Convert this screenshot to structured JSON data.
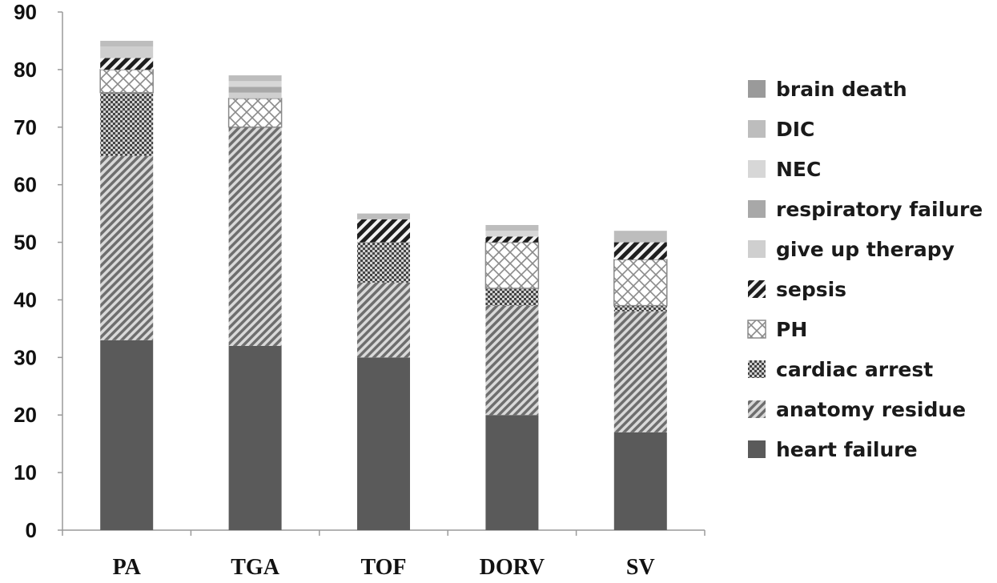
{
  "chart_data": {
    "type": "bar",
    "stacked": true,
    "categories": [
      "PA",
      "TGA",
      "TOF",
      "DORV",
      "SV"
    ],
    "ylim": [
      0,
      90
    ],
    "yticks": [
      0,
      10,
      20,
      30,
      40,
      50,
      60,
      70,
      80,
      90
    ],
    "grid": false,
    "legend_position": "right",
    "title": "",
    "xlabel": "",
    "ylabel": "",
    "series": [
      {
        "name": "heart failure",
        "values": [
          33,
          32,
          30,
          20,
          17
        ],
        "pattern": "solid",
        "color": "#5a5a5a"
      },
      {
        "name": "anatomy residue",
        "values": [
          32,
          38,
          13,
          19,
          21
        ],
        "pattern": "diagonal",
        "color": "#6e6e6e"
      },
      {
        "name": "cardiac arrest",
        "values": [
          11,
          0,
          7,
          3,
          1
        ],
        "pattern": "checker",
        "color": "#555555"
      },
      {
        "name": "PH",
        "values": [
          4,
          5,
          0,
          8,
          8
        ],
        "pattern": "crosshatch",
        "color": "#8a8a8a"
      },
      {
        "name": "sepsis",
        "values": [
          2,
          0,
          4,
          1,
          3
        ],
        "pattern": "bold-diagonal",
        "color": "#1e1e1e"
      },
      {
        "name": "give up therapy",
        "values": [
          2,
          1,
          0,
          0,
          0
        ],
        "pattern": "solid",
        "color": "#cfcfcf"
      },
      {
        "name": "respiratory failure",
        "values": [
          0,
          1,
          0,
          0,
          0
        ],
        "pattern": "solid",
        "color": "#a8a8a8"
      },
      {
        "name": "NEC",
        "values": [
          0,
          1,
          0,
          1,
          0
        ],
        "pattern": "solid",
        "color": "#d7d7d7"
      },
      {
        "name": "DIC",
        "values": [
          1,
          1,
          1,
          1,
          2
        ],
        "pattern": "solid",
        "color": "#bdbdbd"
      },
      {
        "name": "brain death",
        "values": [
          0,
          0,
          0,
          0,
          0
        ],
        "pattern": "solid",
        "color": "#9a9a9a"
      }
    ]
  }
}
